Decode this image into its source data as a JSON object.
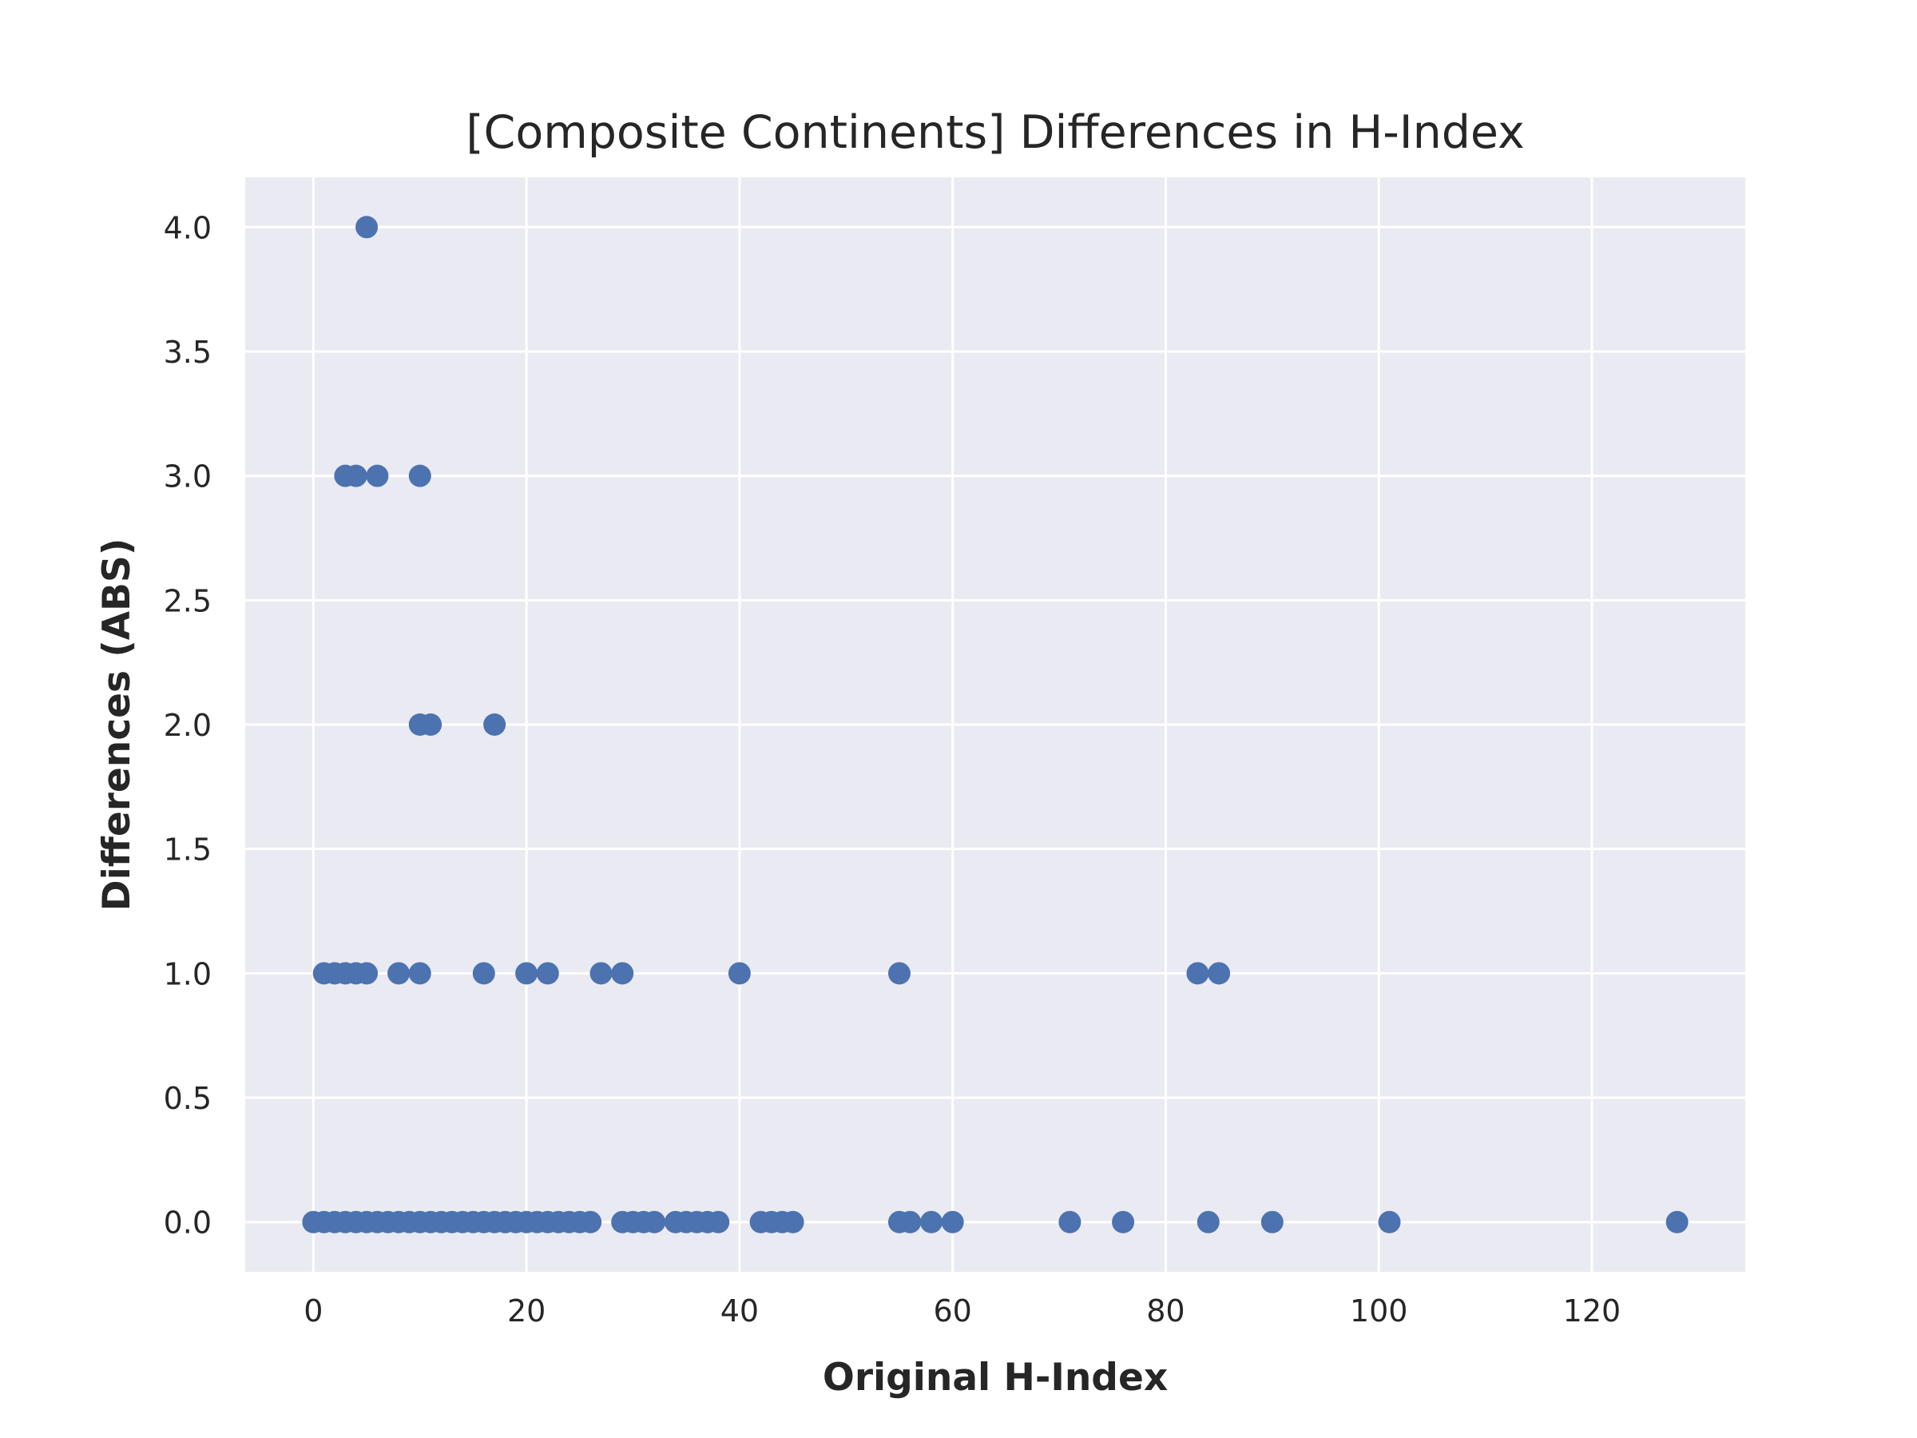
{
  "chart_data": {
    "type": "scatter",
    "title": "[Composite Continents] Differences in H-Index",
    "xlabel": "Original H-Index",
    "ylabel": "Differences (ABS)",
    "xlim": [
      -6.4,
      134.4
    ],
    "ylim": [
      -0.2,
      4.2
    ],
    "xticks": [
      0,
      20,
      40,
      60,
      80,
      100,
      120
    ],
    "xtick_labels": [
      "0",
      "20",
      "40",
      "60",
      "80",
      "100",
      "120"
    ],
    "yticks": [
      0.0,
      0.5,
      1.0,
      1.5,
      2.0,
      2.5,
      3.0,
      3.5,
      4.0
    ],
    "ytick_labels": [
      "0.0",
      "0.5",
      "1.0",
      "1.5",
      "2.0",
      "2.5",
      "3.0",
      "3.5",
      "4.0"
    ],
    "grid": true,
    "background_color": "#eaeaf2",
    "grid_color": "#ffffff",
    "marker_color": "#4c72b0",
    "points": [
      {
        "x": 5,
        "y": 4
      },
      {
        "x": 3,
        "y": 3
      },
      {
        "x": 4,
        "y": 3
      },
      {
        "x": 6,
        "y": 3
      },
      {
        "x": 10,
        "y": 3
      },
      {
        "x": 10,
        "y": 2
      },
      {
        "x": 11,
        "y": 2
      },
      {
        "x": 17,
        "y": 2
      },
      {
        "x": 1,
        "y": 1
      },
      {
        "x": 2,
        "y": 1
      },
      {
        "x": 3,
        "y": 1
      },
      {
        "x": 4,
        "y": 1
      },
      {
        "x": 5,
        "y": 1
      },
      {
        "x": 8,
        "y": 1
      },
      {
        "x": 10,
        "y": 1
      },
      {
        "x": 16,
        "y": 1
      },
      {
        "x": 20,
        "y": 1
      },
      {
        "x": 22,
        "y": 1
      },
      {
        "x": 27,
        "y": 1
      },
      {
        "x": 29,
        "y": 1
      },
      {
        "x": 40,
        "y": 1
      },
      {
        "x": 55,
        "y": 1
      },
      {
        "x": 83,
        "y": 1
      },
      {
        "x": 85,
        "y": 1
      },
      {
        "x": 0,
        "y": 0
      },
      {
        "x": 1,
        "y": 0
      },
      {
        "x": 2,
        "y": 0
      },
      {
        "x": 3,
        "y": 0
      },
      {
        "x": 4,
        "y": 0
      },
      {
        "x": 5,
        "y": 0
      },
      {
        "x": 6,
        "y": 0
      },
      {
        "x": 7,
        "y": 0
      },
      {
        "x": 8,
        "y": 0
      },
      {
        "x": 9,
        "y": 0
      },
      {
        "x": 10,
        "y": 0
      },
      {
        "x": 11,
        "y": 0
      },
      {
        "x": 12,
        "y": 0
      },
      {
        "x": 13,
        "y": 0
      },
      {
        "x": 14,
        "y": 0
      },
      {
        "x": 15,
        "y": 0
      },
      {
        "x": 16,
        "y": 0
      },
      {
        "x": 17,
        "y": 0
      },
      {
        "x": 18,
        "y": 0
      },
      {
        "x": 19,
        "y": 0
      },
      {
        "x": 20,
        "y": 0
      },
      {
        "x": 21,
        "y": 0
      },
      {
        "x": 22,
        "y": 0
      },
      {
        "x": 23,
        "y": 0
      },
      {
        "x": 24,
        "y": 0
      },
      {
        "x": 25,
        "y": 0
      },
      {
        "x": 26,
        "y": 0
      },
      {
        "x": 29,
        "y": 0
      },
      {
        "x": 30,
        "y": 0
      },
      {
        "x": 31,
        "y": 0
      },
      {
        "x": 32,
        "y": 0
      },
      {
        "x": 34,
        "y": 0
      },
      {
        "x": 35,
        "y": 0
      },
      {
        "x": 36,
        "y": 0
      },
      {
        "x": 37,
        "y": 0
      },
      {
        "x": 38,
        "y": 0
      },
      {
        "x": 42,
        "y": 0
      },
      {
        "x": 43,
        "y": 0
      },
      {
        "x": 44,
        "y": 0
      },
      {
        "x": 45,
        "y": 0
      },
      {
        "x": 55,
        "y": 0
      },
      {
        "x": 56,
        "y": 0
      },
      {
        "x": 58,
        "y": 0
      },
      {
        "x": 60,
        "y": 0
      },
      {
        "x": 71,
        "y": 0
      },
      {
        "x": 76,
        "y": 0
      },
      {
        "x": 84,
        "y": 0
      },
      {
        "x": 90,
        "y": 0
      },
      {
        "x": 101,
        "y": 0
      },
      {
        "x": 128,
        "y": 0
      }
    ]
  }
}
